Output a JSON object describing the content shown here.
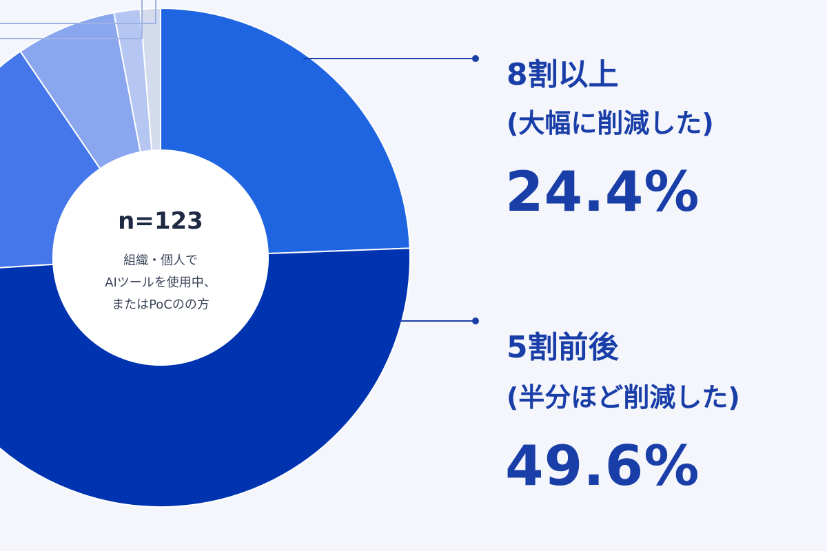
{
  "chart_data": {
    "type": "pie",
    "center": {
      "n_label": "n=123",
      "description_lines": [
        "組織・個人で",
        "AIツールを使用中、",
        "またはPoCのの方"
      ]
    },
    "slices": [
      {
        "title": "8割以上",
        "subtitle": "(大幅に削減した)",
        "value": 24.4,
        "value_label": "24.4%",
        "color": "#1f64e0"
      },
      {
        "title": "5割前後",
        "subtitle": "(半分ほど削減した)",
        "value": 49.6,
        "value_label": "49.6%",
        "color": "#0033b0"
      },
      {
        "value": 16.5,
        "color": "#4677ea"
      },
      {
        "value": 6.5,
        "color": "#8aa6ef"
      },
      {
        "value": 1.7,
        "color": "#b5c6f2"
      },
      {
        "value": 1.3,
        "color": "#d3dbec"
      }
    ]
  }
}
